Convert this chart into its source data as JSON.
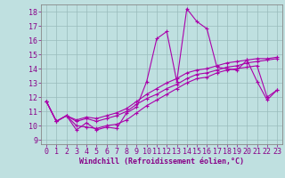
{
  "xlabel": "Windchill (Refroidissement éolien,°C)",
  "xlim": [
    -0.5,
    23.5
  ],
  "ylim": [
    8.7,
    18.5
  ],
  "xticks": [
    0,
    1,
    2,
    3,
    4,
    5,
    6,
    7,
    8,
    9,
    10,
    11,
    12,
    13,
    14,
    15,
    16,
    17,
    18,
    19,
    20,
    21,
    22,
    23
  ],
  "yticks": [
    9,
    10,
    11,
    12,
    13,
    14,
    15,
    16,
    17,
    18
  ],
  "bg_color": "#bfe0e0",
  "line_color": "#aa00aa",
  "grid_color": "#99bbbb",
  "lines": [
    [
      11.7,
      10.3,
      10.7,
      9.7,
      10.2,
      9.7,
      9.9,
      9.8,
      10.9,
      11.3,
      13.1,
      16.1,
      16.6,
      13.1,
      18.2,
      17.3,
      16.8,
      14.1,
      14.0,
      13.9,
      14.6,
      13.1,
      11.8,
      12.5
    ],
    [
      11.7,
      10.3,
      10.7,
      10.3,
      10.5,
      10.3,
      10.5,
      10.7,
      11.0,
      11.5,
      11.9,
      12.2,
      12.6,
      12.9,
      13.3,
      13.6,
      13.7,
      13.9,
      14.1,
      14.2,
      14.4,
      14.5,
      14.6,
      14.7
    ],
    [
      11.7,
      10.3,
      10.7,
      10.4,
      10.6,
      10.5,
      10.7,
      10.9,
      11.2,
      11.7,
      12.2,
      12.6,
      13.0,
      13.3,
      13.7,
      13.9,
      14.0,
      14.2,
      14.4,
      14.5,
      14.6,
      14.7,
      14.7,
      14.8
    ],
    [
      11.7,
      10.3,
      10.7,
      10.0,
      9.9,
      9.8,
      10.0,
      10.1,
      10.4,
      10.9,
      11.4,
      11.8,
      12.2,
      12.6,
      13.0,
      13.3,
      13.4,
      13.7,
      13.9,
      14.0,
      14.1,
      14.2,
      12.0,
      12.5
    ]
  ],
  "font_size_label": 6.0,
  "font_size_tick": 6.0,
  "tick_color": "#880088",
  "label_color": "#880088"
}
